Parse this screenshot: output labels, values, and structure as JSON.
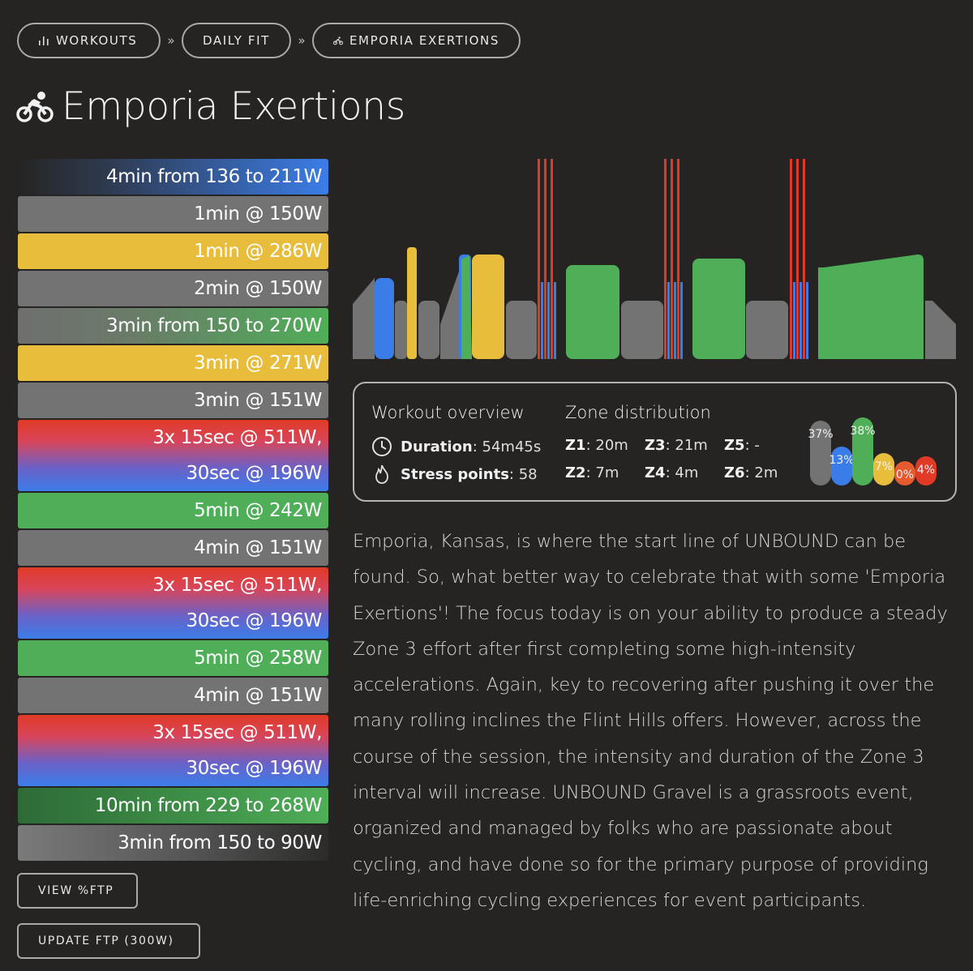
{
  "breadcrumb": {
    "items": [
      {
        "label": "WORKOUTS",
        "icon": "bar-chart-icon"
      },
      {
        "label": "DAILY FIT",
        "icon": ""
      },
      {
        "label": "EMPORIA EXERTIONS",
        "icon": "cyclist-icon"
      }
    ],
    "separator": "»"
  },
  "page": {
    "title": "Emporia Exertions",
    "icon": "cyclist-icon"
  },
  "colors": {
    "background": "#252423",
    "gray": "#737373",
    "blue": "#3b7de8",
    "yellow": "#e9bd3c",
    "green": "#4fae58",
    "red": "#e03a26",
    "orange": "#e55a2e"
  },
  "steps": [
    {
      "lines": [
        "4min from 136 to 211W"
      ],
      "style": "ramp-blue"
    },
    {
      "lines": [
        "1min @ 150W"
      ],
      "style": "gray"
    },
    {
      "lines": [
        "1min @ 286W"
      ],
      "style": "yellow"
    },
    {
      "lines": [
        "2min @ 150W"
      ],
      "style": "gray"
    },
    {
      "lines": [
        "3min from 150 to 270W"
      ],
      "style": "ramp-green"
    },
    {
      "lines": [
        "3min @ 271W"
      ],
      "style": "yellow"
    },
    {
      "lines": [
        "3min @ 151W"
      ],
      "style": "gray"
    },
    {
      "lines": [
        "3x 15sec @ 511W,",
        "30sec @ 196W"
      ],
      "style": "red-blue"
    },
    {
      "lines": [
        "5min @ 242W"
      ],
      "style": "green"
    },
    {
      "lines": [
        "4min @ 151W"
      ],
      "style": "gray"
    },
    {
      "lines": [
        "3x 15sec @ 511W,",
        "30sec @ 196W"
      ],
      "style": "red-blue"
    },
    {
      "lines": [
        "5min @ 258W"
      ],
      "style": "green"
    },
    {
      "lines": [
        "4min @ 151W"
      ],
      "style": "gray"
    },
    {
      "lines": [
        "3x 15sec @ 511W,",
        "30sec @ 196W"
      ],
      "style": "red-blue"
    },
    {
      "lines": [
        "10min from 229 to 268W"
      ],
      "style": "ramp-dkgreen"
    },
    {
      "lines": [
        "3min from 150 to 90W"
      ],
      "style": "ramp-gray"
    }
  ],
  "buttons": {
    "view_ftp": "VIEW %FTP",
    "update_ftp": "UPDATE FTP (300W)"
  },
  "overview": {
    "title": "Workout overview",
    "duration_label": "Duration",
    "duration_value": ": 54m45s",
    "stress_label": "Stress points",
    "stress_value": ": 58"
  },
  "zones": {
    "title": "Zone distribution",
    "items": [
      {
        "name": "Z1",
        "value": ": 20m"
      },
      {
        "name": "Z3",
        "value": ": 21m"
      },
      {
        "name": "Z5",
        "value": ": -"
      },
      {
        "name": "Z2",
        "value": ": 7m"
      },
      {
        "name": "Z4",
        "value": ": 4m"
      },
      {
        "name": "Z6",
        "value": ": 2m"
      }
    ],
    "bars": [
      {
        "label": "37%",
        "value": 37,
        "color": "#737373"
      },
      {
        "label": "13%",
        "value": 13,
        "color": "#3b7de8"
      },
      {
        "label": "38%",
        "value": 38,
        "color": "#4fae58"
      },
      {
        "label": "7%",
        "value": 7,
        "color": "#e9bd3c"
      },
      {
        "label": "0%",
        "value": 0,
        "color": "#e55a2e"
      },
      {
        "label": "4%",
        "value": 4,
        "color": "#e03a26"
      }
    ]
  },
  "description": "Emporia, Kansas, is where the start line of UNBOUND can be found. So, what better way to celebrate that with some 'Emporia Exertions'! The focus today is on your ability to produce a steady Zone 3 effort after first completing some high-intensity accelerations. Again, key to recovering after pushing it over the many rolling inclines the Flint Hills offers. However, across the course of the session, the intensity and duration of the Zone 3 interval will increase. UNBOUND Gravel is a grassroots event, organized and managed by folks who are passionate about cycling, and have done so for the primary purpose of providing life-enriching cycling experiences for event participants."
}
